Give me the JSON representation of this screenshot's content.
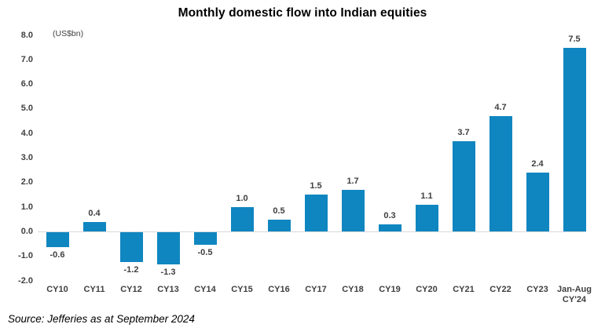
{
  "header": {
    "title": "Monthly domestic flow into Indian equities",
    "unit_label": "(US$bn)"
  },
  "footer": {
    "source": "Source: Jefferies as at September 2024"
  },
  "colors": {
    "bar": "#0F86C0",
    "axis_line": "#D9D9D9",
    "tick_text": "#3F3F3F",
    "title_text": "#000000"
  },
  "chart_data": {
    "type": "bar",
    "title": "Monthly domestic flow into Indian equities",
    "ylabel": "(US$bn)",
    "xlabel": "",
    "categories": [
      "CY10",
      "CY11",
      "CY12",
      "CY13",
      "CY14",
      "CY15",
      "CY16",
      "CY17",
      "CY18",
      "CY19",
      "CY20",
      "CY21",
      "CY22",
      "CY23",
      "Jan-Aug\nCY'24"
    ],
    "values": [
      -0.6,
      0.4,
      -1.2,
      -1.3,
      -0.5,
      1.0,
      0.5,
      1.5,
      1.7,
      0.3,
      1.1,
      3.7,
      4.7,
      2.4,
      7.5
    ],
    "value_labels": [
      "-0.6",
      "0.4",
      "-1.2",
      "-1.3",
      "-0.5",
      "1.0",
      "0.5",
      "1.5",
      "1.7",
      "0.3",
      "1.1",
      "3.7",
      "4.7",
      "2.4",
      "7.5"
    ],
    "yticks": [
      "8.0",
      "7.0",
      "6.0",
      "5.0",
      "4.0",
      "3.0",
      "2.0",
      "1.0",
      "0.0",
      "-1.0",
      "-2.0"
    ],
    "ylim": [
      -2.0,
      8.0
    ],
    "grid": false,
    "legend": "none",
    "value_labels_on": true
  }
}
